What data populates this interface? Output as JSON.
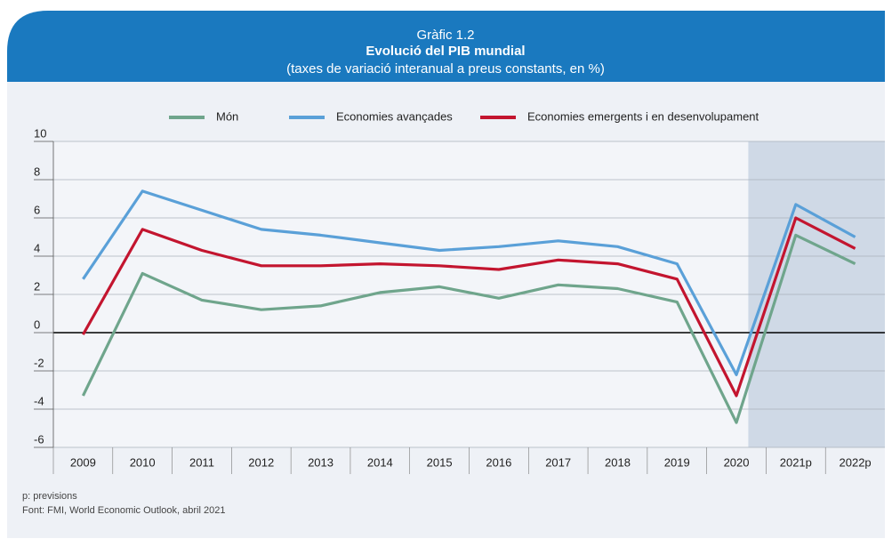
{
  "chart_data": {
    "type": "line",
    "label": "Gràfic 1.2",
    "title": "Evolució del PIB mundial",
    "subtitle": "(taxes de variació interanual a preus constants, en %)",
    "categories": [
      "2009",
      "2010",
      "2011",
      "2012",
      "2013",
      "2014",
      "2015",
      "2016",
      "2017",
      "2018",
      "2019",
      "2020",
      "2021p",
      "2022p"
    ],
    "series": [
      {
        "name": "Món",
        "color": "#6fa58c",
        "values": [
          -3.3,
          3.1,
          1.7,
          1.2,
          1.4,
          2.1,
          2.4,
          1.8,
          2.5,
          2.3,
          1.6,
          -4.7,
          5.1,
          3.6
        ]
      },
      {
        "name": "Economies avançades",
        "color": "#5aa0d8",
        "values": [
          2.8,
          7.4,
          6.4,
          5.4,
          5.1,
          4.7,
          4.3,
          4.5,
          4.8,
          4.5,
          3.6,
          -2.2,
          6.7,
          5.0
        ]
      },
      {
        "name": "Economies emergents i en desenvolupament",
        "color": "#c3152f",
        "values": [
          -0.1,
          5.4,
          4.3,
          3.5,
          3.5,
          3.6,
          3.5,
          3.3,
          3.8,
          3.6,
          2.8,
          -3.3,
          6.0,
          4.4
        ]
      }
    ],
    "ylim": [
      -6,
      10
    ],
    "yticks": [
      -6,
      -4,
      -2,
      0,
      2,
      4,
      6,
      8,
      10
    ],
    "grid": true,
    "notes": [
      "p: previsions",
      "Font: FMI, World Economic Outlook, abril 2021"
    ]
  }
}
